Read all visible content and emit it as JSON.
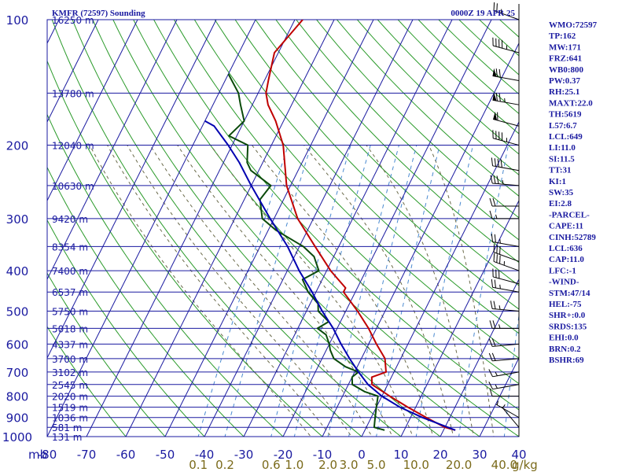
{
  "chart_data": {
    "type": "line",
    "title": "KMFR (72597) Sounding",
    "valid_time": "0000Z 19 APR 25",
    "x_axis": {
      "unit_label": "C",
      "ticks": [
        "-80",
        "-70",
        "-60",
        "-50",
        "-40",
        "-30",
        "-20",
        "-10",
        "0",
        "10",
        "20",
        "30",
        "40"
      ],
      "xlim": [
        -80,
        40
      ]
    },
    "y_axis": {
      "unit_label": "mb",
      "scale": "log-pressure",
      "ylim": [
        1000,
        100
      ],
      "ticks": [
        "100",
        "200",
        "300",
        "400",
        "500",
        "600",
        "700",
        "800",
        "900",
        "1000"
      ],
      "gridlines": [
        100,
        150,
        200,
        250,
        300,
        350,
        400,
        450,
        500,
        550,
        600,
        650,
        700,
        750,
        800,
        850,
        900,
        950,
        1000
      ]
    },
    "height_labels": [
      {
        "p": 100,
        "label": "16250 m"
      },
      {
        "p": 150,
        "label": "13780 m"
      },
      {
        "p": 200,
        "label": "12040 m"
      },
      {
        "p": 250,
        "label": "10630 m"
      },
      {
        "p": 300,
        "label": "9420 m"
      },
      {
        "p": 350,
        "label": "8354 m"
      },
      {
        "p": 400,
        "label": "7400 m"
      },
      {
        "p": 450,
        "label": "6537 m"
      },
      {
        "p": 500,
        "label": "5750 m"
      },
      {
        "p": 550,
        "label": "5018 m"
      },
      {
        "p": 600,
        "label": "4337 m"
      },
      {
        "p": 650,
        "label": "3700 m"
      },
      {
        "p": 700,
        "label": "3102 m"
      },
      {
        "p": 750,
        "label": "2545 m"
      },
      {
        "p": 800,
        "label": "2020 m"
      },
      {
        "p": 850,
        "label": "1519 m"
      },
      {
        "p": 900,
        "label": "1036 m"
      },
      {
        "p": 950,
        "label": "581 m"
      },
      {
        "p": 1000,
        "label": "131 m"
      }
    ],
    "mixing_ratio_labels": [
      "0.1",
      "0.2",
      "0.6",
      "1.0",
      "2.0",
      "3.0",
      "5.0",
      "10.0",
      "20.0",
      "40.0"
    ],
    "mixing_ratio_unit": "g/kg",
    "series": [
      {
        "color": "#c00000",
        "points": [
          {
            "p": 965,
            "t": 23
          },
          {
            "p": 950,
            "t": 20
          },
          {
            "p": 900,
            "t": 14
          },
          {
            "p": 850,
            "t": 8
          },
          {
            "p": 800,
            "t": 2
          },
          {
            "p": 750,
            "t": -4
          },
          {
            "p": 720,
            "t": -5
          },
          {
            "p": 700,
            "t": -2
          },
          {
            "p": 650,
            "t": -4
          },
          {
            "p": 600,
            "t": -8
          },
          {
            "p": 550,
            "t": -12
          },
          {
            "p": 500,
            "t": -17
          },
          {
            "p": 450,
            "t": -23
          },
          {
            "p": 440,
            "t": -23
          },
          {
            "p": 400,
            "t": -29
          },
          {
            "p": 350,
            "t": -36
          },
          {
            "p": 300,
            "t": -44
          },
          {
            "p": 250,
            "t": -51
          },
          {
            "p": 200,
            "t": -57
          },
          {
            "p": 175,
            "t": -62
          },
          {
            "p": 160,
            "t": -66
          },
          {
            "p": 150,
            "t": -68
          },
          {
            "p": 140,
            "t": -69
          },
          {
            "p": 120,
            "t": -71
          },
          {
            "p": 100,
            "t": -68
          }
        ]
      },
      {
        "color": "#0a4a0a",
        "points": [
          {
            "p": 965,
            "t": 5
          },
          {
            "p": 950,
            "t": 2
          },
          {
            "p": 900,
            "t": 1
          },
          {
            "p": 850,
            "t": 0
          },
          {
            "p": 800,
            "t": -1
          },
          {
            "p": 780,
            "t": -5
          },
          {
            "p": 750,
            "t": -9
          },
          {
            "p": 720,
            "t": -10
          },
          {
            "p": 700,
            "t": -9
          },
          {
            "p": 680,
            "t": -13
          },
          {
            "p": 650,
            "t": -17
          },
          {
            "p": 620,
            "t": -19
          },
          {
            "p": 600,
            "t": -20
          },
          {
            "p": 570,
            "t": -22
          },
          {
            "p": 550,
            "t": -25
          },
          {
            "p": 530,
            "t": -23
          },
          {
            "p": 500,
            "t": -27
          },
          {
            "p": 480,
            "t": -28
          },
          {
            "p": 450,
            "t": -32
          },
          {
            "p": 420,
            "t": -35
          },
          {
            "p": 400,
            "t": -32
          },
          {
            "p": 370,
            "t": -35
          },
          {
            "p": 350,
            "t": -39
          },
          {
            "p": 320,
            "t": -48
          },
          {
            "p": 300,
            "t": -53
          },
          {
            "p": 270,
            "t": -56
          },
          {
            "p": 250,
            "t": -55
          },
          {
            "p": 230,
            "t": -62
          },
          {
            "p": 220,
            "t": -64
          },
          {
            "p": 200,
            "t": -66
          },
          {
            "p": 190,
            "t": -72
          },
          {
            "p": 175,
            "t": -70
          },
          {
            "p": 160,
            "t": -73
          },
          {
            "p": 150,
            "t": -75
          },
          {
            "p": 135,
            "t": -80
          }
        ]
      },
      {
        "color": "#0000b0",
        "points": [
          {
            "p": 965,
            "t": 23
          },
          {
            "p": 900,
            "t": 13
          },
          {
            "p": 850,
            "t": 6
          },
          {
            "p": 800,
            "t": 0
          },
          {
            "p": 750,
            "t": -5
          },
          {
            "p": 700,
            "t": -9
          },
          {
            "p": 650,
            "t": -13
          },
          {
            "p": 600,
            "t": -17
          },
          {
            "p": 550,
            "t": -21
          },
          {
            "p": 500,
            "t": -26
          },
          {
            "p": 450,
            "t": -31
          },
          {
            "p": 400,
            "t": -37
          },
          {
            "p": 350,
            "t": -43
          },
          {
            "p": 300,
            "t": -51
          },
          {
            "p": 250,
            "t": -60
          },
          {
            "p": 220,
            "t": -66
          },
          {
            "p": 200,
            "t": -71
          },
          {
            "p": 180,
            "t": -77
          },
          {
            "p": 175,
            "t": -80
          }
        ]
      }
    ],
    "winds": [
      {
        "p": 100,
        "dir": 290,
        "spd": 25
      },
      {
        "p": 120,
        "dir": 285,
        "spd": 45
      },
      {
        "p": 140,
        "dir": 280,
        "spd": 70
      },
      {
        "p": 160,
        "dir": 280,
        "spd": 75
      },
      {
        "p": 180,
        "dir": 285,
        "spd": 60
      },
      {
        "p": 200,
        "dir": 285,
        "spd": 45
      },
      {
        "p": 230,
        "dir": 280,
        "spd": 40
      },
      {
        "p": 250,
        "dir": 275,
        "spd": 35
      },
      {
        "p": 280,
        "dir": 270,
        "spd": 20
      },
      {
        "p": 300,
        "dir": 270,
        "spd": 15
      },
      {
        "p": 350,
        "dir": 280,
        "spd": 25
      },
      {
        "p": 380,
        "dir": 290,
        "spd": 30
      },
      {
        "p": 400,
        "dir": 290,
        "spd": 35
      },
      {
        "p": 430,
        "dir": 285,
        "spd": 30
      },
      {
        "p": 450,
        "dir": 280,
        "spd": 25
      },
      {
        "p": 500,
        "dir": 275,
        "spd": 25
      },
      {
        "p": 550,
        "dir": 270,
        "spd": 25
      },
      {
        "p": 600,
        "dir": 265,
        "spd": 20
      },
      {
        "p": 650,
        "dir": 265,
        "spd": 20
      },
      {
        "p": 700,
        "dir": 260,
        "spd": 15
      },
      {
        "p": 750,
        "dir": 260,
        "spd": 15
      },
      {
        "p": 800,
        "dir": 270,
        "spd": 10
      },
      {
        "p": 900,
        "dir": 300,
        "spd": 5
      },
      {
        "p": 950,
        "dir": 320,
        "spd": 5
      }
    ]
  },
  "indices": [
    "WMO:72597",
    "TP:162",
    "MW:171",
    "FRZ:641",
    "WB0:800",
    "PW:0.37",
    "RH:25.1",
    "MAXT:22.0",
    "TH:5619",
    "L57:6.7",
    "LCL:649",
    "LI:11.0",
    "SI:11.5",
    "TT:31",
    "KI:1",
    "SW:35",
    "EI:2.8",
    "-PARCEL-",
    "CAPE:11",
    "CINH:52789",
    "LCL:636",
    "CAP:11.0",
    "LFC:-1",
    "-WIND-",
    "STM:47/14",
    "HEL:-75",
    "SHR+:0.0",
    "SRDS:135",
    "EHI:0.0",
    "BRN:0.2",
    "BSHR:69"
  ],
  "colors": {
    "grid": "#1a1aa0",
    "isotherm": "#1a1aa0",
    "dry_adiabat": "#2a9a2a",
    "moist_adiabat": "#6a6a4a",
    "mixing_ratio": "#4a8ad0",
    "temperature": "#c00000",
    "dewpoint": "#0a4a0a",
    "parcel": "#0000b0"
  }
}
